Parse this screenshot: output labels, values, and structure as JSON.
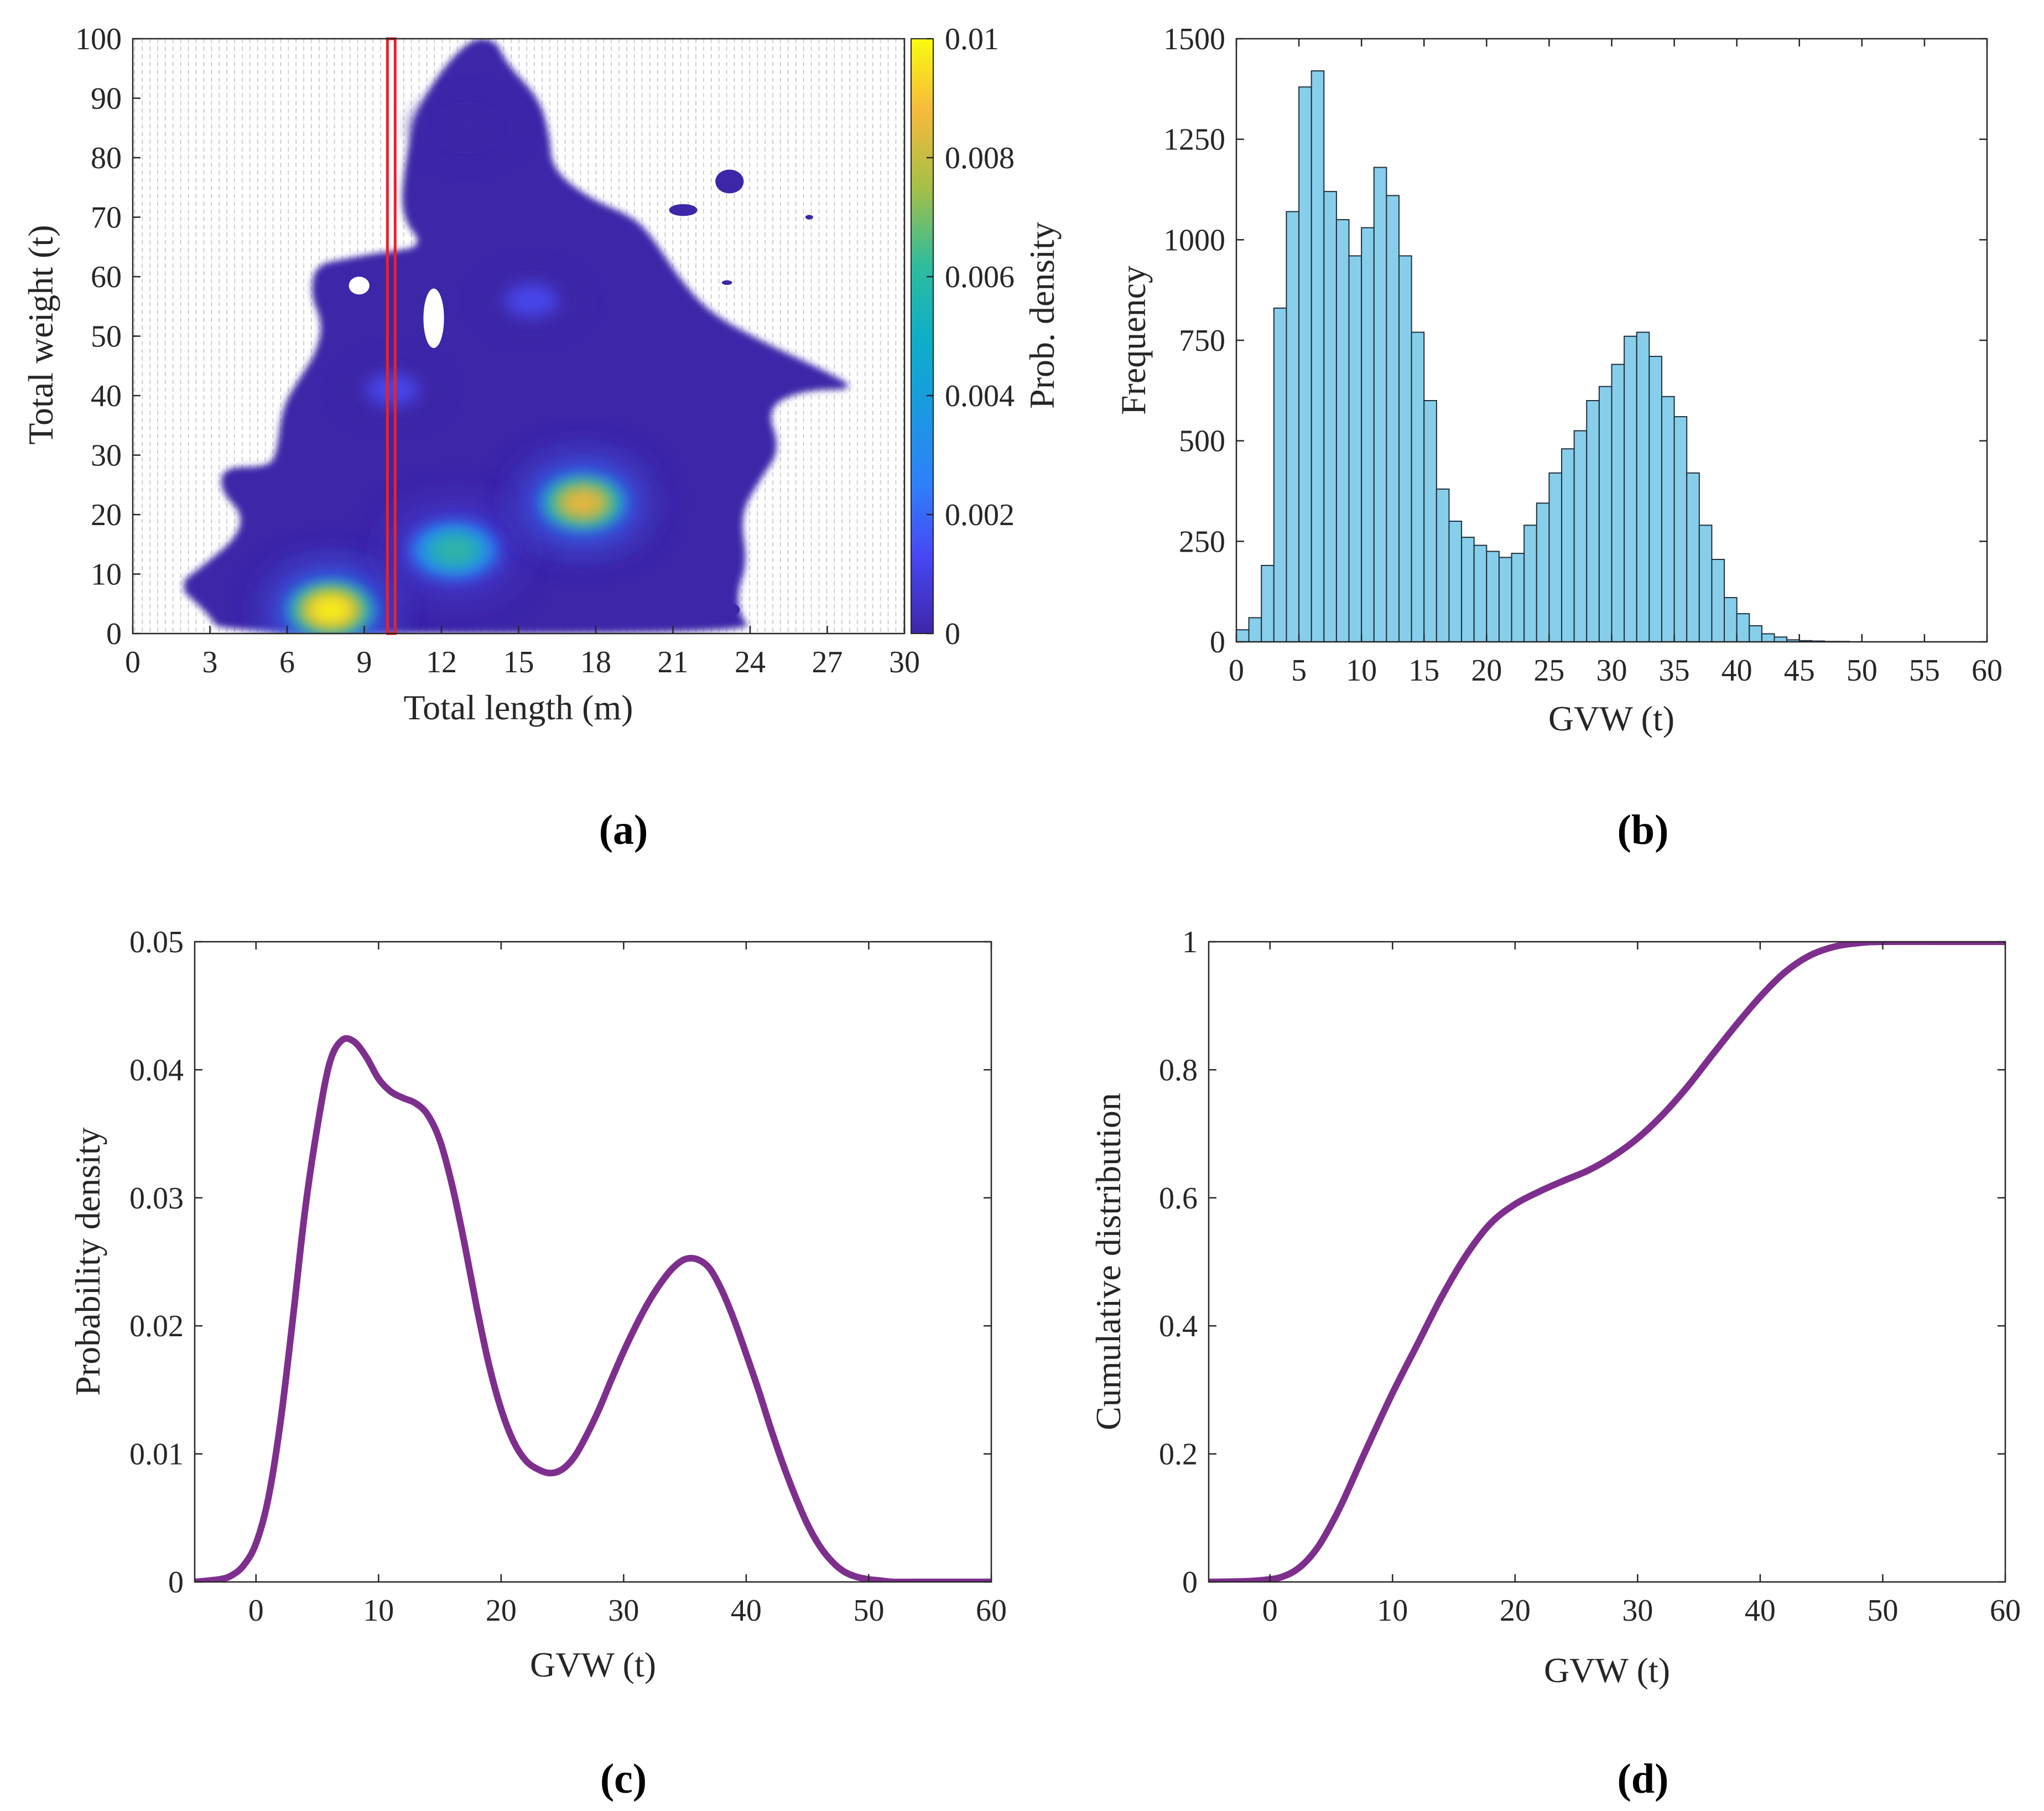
{
  "colors": {
    "bar_fill": "#87CEEB",
    "bar_edge": "#1f2f3a",
    "line": "#7E2F8E",
    "highlight_box": "#E8222B",
    "density_low": "#3E26A8",
    "density_high": "#F9FB0E",
    "axis": "#262626"
  },
  "chart_data": [
    {
      "panel_label": "(a)",
      "type": "heatmap",
      "title": "",
      "xlabel": "Total length (m)",
      "ylabel": "Total weight (t)",
      "xlim": [
        0,
        30
      ],
      "ylim": [
        0,
        100
      ],
      "xticks": [
        0,
        3,
        6,
        9,
        12,
        15,
        18,
        21,
        24,
        27,
        30
      ],
      "yticks": [
        0,
        10,
        20,
        30,
        40,
        50,
        60,
        70,
        80,
        90,
        100
      ],
      "colorbar": {
        "label": "Prob. density",
        "range": [
          0,
          0.01
        ],
        "ticks": [
          "0",
          "0.002",
          "0.004",
          "0.006",
          "0.008",
          "0.01"
        ]
      },
      "highlight_x_range": [
        9.9,
        10.2
      ],
      "density_peaks": [
        {
          "x": 7.7,
          "y": 4,
          "density": 0.01
        },
        {
          "x": 12.5,
          "y": 14,
          "density": 0.0062
        },
        {
          "x": 17.5,
          "y": 22,
          "density": 0.0088
        },
        {
          "x": 10.1,
          "y": 41,
          "density": 0.0025
        },
        {
          "x": 15.5,
          "y": 56,
          "density": 0.0018
        },
        {
          "x": 13.0,
          "y": 85,
          "density": 0.0012
        }
      ],
      "support_outline": [
        [
          2,
          7
        ],
        [
          3,
          3
        ],
        [
          3.4,
          0
        ],
        [
          24.2,
          0
        ],
        [
          23.6,
          3
        ],
        [
          23.5,
          7
        ],
        [
          23.9,
          12
        ],
        [
          23.6,
          20
        ],
        [
          24.4,
          26
        ],
        [
          25.2,
          31
        ],
        [
          24.6,
          38
        ],
        [
          26.1,
          41
        ],
        [
          28.2,
          41
        ],
        [
          27,
          44
        ],
        [
          24.5,
          49
        ],
        [
          22.4,
          54
        ],
        [
          21.2,
          60
        ],
        [
          20.3,
          66
        ],
        [
          19.5,
          70
        ],
        [
          17.8,
          73
        ],
        [
          16.3,
          78
        ],
        [
          16.2,
          84
        ],
        [
          15.8,
          90
        ],
        [
          14.5,
          96
        ],
        [
          14.1,
          100
        ],
        [
          13,
          100
        ],
        [
          11.2,
          90
        ],
        [
          10.6,
          80
        ],
        [
          10.4,
          70
        ],
        [
          11.4,
          65
        ],
        [
          9.5,
          64
        ],
        [
          8.3,
          63
        ],
        [
          7.1,
          62
        ],
        [
          6.9,
          57
        ],
        [
          7.4,
          52
        ],
        [
          7.1,
          47
        ],
        [
          6.5,
          43
        ],
        [
          5.8,
          38
        ],
        [
          5.6,
          30
        ],
        [
          5.2,
          28
        ],
        [
          3.5,
          28
        ],
        [
          3.4,
          24
        ],
        [
          4.3,
          20
        ],
        [
          4,
          16
        ],
        [
          2.9,
          12
        ],
        [
          2,
          9
        ]
      ],
      "holes": [
        {
          "x": 11.7,
          "y": 53,
          "w": 0.8,
          "h": 10
        },
        {
          "x": 8.8,
          "y": 58.5,
          "w": 0.8,
          "h": 3
        }
      ],
      "islands": [
        {
          "x": 23.2,
          "y": 76,
          "w": 1.1,
          "h": 4
        },
        {
          "x": 21.4,
          "y": 71.2,
          "w": 1.1,
          "h": 2
        },
        {
          "x": 26.3,
          "y": 70,
          "w": 0.3,
          "h": 0.8
        },
        {
          "x": 23.1,
          "y": 59,
          "w": 0.4,
          "h": 0.8
        },
        {
          "x": 20.4,
          "y": 6,
          "w": 2.5,
          "h": 3.5
        },
        {
          "x": 22.8,
          "y": 4,
          "w": 1.6,
          "h": 3
        }
      ]
    },
    {
      "panel_label": "(b)",
      "type": "bar",
      "title": "",
      "xlabel": "GVW (t)",
      "ylabel": "Frequency",
      "xlim": [
        0,
        60
      ],
      "ylim": [
        0,
        1500
      ],
      "bin_width": 1,
      "xticks": [
        0,
        5,
        10,
        15,
        20,
        25,
        30,
        35,
        40,
        45,
        50,
        55,
        60
      ],
      "yticks": [
        0,
        250,
        500,
        750,
        1000,
        1250,
        1500
      ],
      "bin_starts": [
        0,
        1,
        2,
        3,
        4,
        5,
        6,
        7,
        8,
        9,
        10,
        11,
        12,
        13,
        14,
        15,
        16,
        17,
        18,
        19,
        20,
        21,
        22,
        23,
        24,
        25,
        26,
        27,
        28,
        29,
        30,
        31,
        32,
        33,
        34,
        35,
        36,
        37,
        38,
        39,
        40,
        41,
        42,
        43,
        44,
        45,
        46,
        47,
        48,
        49,
        50,
        51,
        52,
        53,
        54,
        55,
        56,
        57,
        58,
        59
      ],
      "values": [
        30,
        60,
        190,
        830,
        1070,
        1380,
        1420,
        1120,
        1050,
        960,
        1030,
        1180,
        1110,
        960,
        770,
        600,
        380,
        300,
        260,
        240,
        225,
        210,
        220,
        290,
        345,
        420,
        480,
        525,
        600,
        635,
        690,
        760,
        770,
        710,
        610,
        560,
        420,
        290,
        205,
        110,
        70,
        40,
        20,
        12,
        5,
        3,
        2,
        1,
        1,
        0,
        0,
        0,
        0,
        0,
        0,
        0,
        0,
        0,
        0,
        0
      ]
    },
    {
      "panel_label": "(c)",
      "type": "line",
      "title": "",
      "xlabel": "GVW (t)",
      "ylabel": "Probability density",
      "xlim": [
        -5,
        60
      ],
      "ylim": [
        0,
        0.05
      ],
      "xticks": [
        0,
        10,
        20,
        30,
        40,
        50,
        60
      ],
      "yticks": [
        "0",
        "0.01",
        "0.02",
        "0.03",
        "0.04",
        "0.05"
      ],
      "x": [
        -5,
        -3,
        -2,
        -1,
        0,
        1,
        2,
        3,
        4,
        5,
        6,
        7,
        8,
        9,
        10,
        11,
        12,
        13,
        14,
        15,
        16,
        17,
        18,
        19,
        20,
        21,
        22,
        23,
        24,
        25,
        26,
        27,
        28,
        29,
        30,
        31,
        32,
        33,
        34,
        35,
        36,
        37,
        38,
        39,
        40,
        41,
        42,
        43,
        44,
        45,
        46,
        47,
        48,
        49,
        50,
        51,
        52,
        54,
        56,
        60
      ],
      "y": [
        0,
        0.0002,
        0.0005,
        0.0013,
        0.003,
        0.0065,
        0.0125,
        0.0205,
        0.029,
        0.0355,
        0.0405,
        0.0423,
        0.0422,
        0.041,
        0.0393,
        0.0383,
        0.0378,
        0.0374,
        0.0365,
        0.0345,
        0.031,
        0.0265,
        0.0215,
        0.017,
        0.0135,
        0.011,
        0.0095,
        0.0088,
        0.0085,
        0.0088,
        0.0098,
        0.0115,
        0.0135,
        0.0158,
        0.018,
        0.02,
        0.0218,
        0.0233,
        0.0245,
        0.0252,
        0.0252,
        0.0245,
        0.0228,
        0.0205,
        0.0178,
        0.015,
        0.012,
        0.0092,
        0.0067,
        0.0045,
        0.0028,
        0.0016,
        0.0008,
        0.0004,
        0.0002,
        0.0001,
        0,
        0,
        0,
        0
      ]
    },
    {
      "panel_label": "(d)",
      "type": "line",
      "title": "",
      "xlabel": "GVW (t)",
      "ylabel": "Cumulative distribution",
      "xlim": [
        -5,
        60
      ],
      "ylim": [
        0,
        1
      ],
      "xticks": [
        0,
        10,
        20,
        30,
        40,
        50,
        60
      ],
      "yticks": [
        "0",
        "0.2",
        "0.4",
        "0.6",
        "0.8",
        "1"
      ],
      "x": [
        -5,
        -2,
        0,
        1,
        2,
        3,
        4,
        5,
        6,
        8,
        10,
        12,
        14,
        16,
        18,
        20,
        22,
        24,
        26,
        28,
        30,
        32,
        34,
        36,
        38,
        40,
        42,
        44,
        46,
        48,
        50,
        55,
        60
      ],
      "y": [
        0,
        0.001,
        0.004,
        0.008,
        0.017,
        0.033,
        0.057,
        0.09,
        0.128,
        0.213,
        0.295,
        0.37,
        0.445,
        0.51,
        0.56,
        0.59,
        0.61,
        0.627,
        0.643,
        0.665,
        0.693,
        0.729,
        0.772,
        0.821,
        0.869,
        0.914,
        0.952,
        0.978,
        0.992,
        0.998,
        1,
        1,
        1
      ]
    }
  ]
}
